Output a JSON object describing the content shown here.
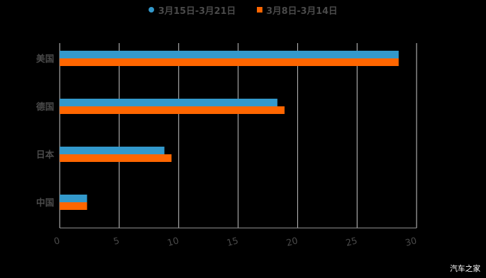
{
  "legend": [
    {
      "label": "3月15日-3月21日",
      "color": "#3399cc",
      "shape": "circle"
    },
    {
      "label": "3月8日-3月14日",
      "color": "#ff6600",
      "shape": "square"
    }
  ],
  "watermark": "汽车之家",
  "chart_data": {
    "type": "bar",
    "orientation": "horizontal",
    "title": "",
    "categories": [
      "美国",
      "德国",
      "日本",
      "中国"
    ],
    "series": [
      {
        "name": "3月15日-3月21日",
        "color": "#3399cc",
        "values": [
          28.5,
          18.3,
          8.8,
          2.3
        ]
      },
      {
        "name": "3月8日-3月14日",
        "color": "#ff6600",
        "values": [
          28.5,
          18.9,
          9.4,
          2.3
        ]
      }
    ],
    "xlabel": "",
    "ylabel": "",
    "xlim": [
      0,
      30
    ],
    "xticks": [
      0,
      5,
      10,
      15,
      20,
      25,
      30
    ],
    "grid": "vertical",
    "legend_position": "top"
  }
}
